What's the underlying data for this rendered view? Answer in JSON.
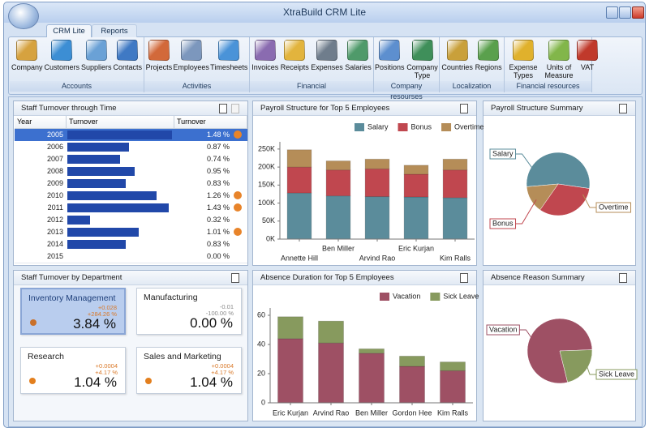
{
  "window": {
    "title": "XtraBuild CRM Lite"
  },
  "ribbon": {
    "tabs": [
      "CRM Lite",
      "Reports"
    ],
    "groups": [
      {
        "label": "Accounts",
        "items": [
          "Company",
          "Customers",
          "Suppliers",
          "Contacts"
        ]
      },
      {
        "label": "Activities",
        "items": [
          "Projects",
          "Employees",
          "Timesheets"
        ]
      },
      {
        "label": "Financial",
        "items": [
          "Invoices",
          "Receipts",
          "Expenses",
          "Salaries"
        ]
      },
      {
        "label": "Company resourses",
        "items": [
          "Positions",
          "Company Type"
        ]
      },
      {
        "label": "Localization",
        "items": [
          "Countries",
          "Regions"
        ]
      },
      {
        "label": "Financial resources",
        "items": [
          "Expense Types",
          "Units of Measure",
          "VAT"
        ]
      }
    ]
  },
  "turnover_table": {
    "title": "Staff Turnover through Time",
    "columns": [
      "Year",
      "Turnover",
      "Turnover"
    ],
    "rows": [
      {
        "year": "2005",
        "turnover": 1.48,
        "label": "1.48 %",
        "alert": true,
        "selected": true
      },
      {
        "year": "2006",
        "turnover": 0.87,
        "label": "0.87 %"
      },
      {
        "year": "2007",
        "turnover": 0.74,
        "label": "0.74 %"
      },
      {
        "year": "2008",
        "turnover": 0.95,
        "label": "0.95 %"
      },
      {
        "year": "2009",
        "turnover": 0.83,
        "label": "0.83 %"
      },
      {
        "year": "2010",
        "turnover": 1.26,
        "label": "1.26 %",
        "alert": true
      },
      {
        "year": "2011",
        "turnover": 1.43,
        "label": "1.43 %",
        "alert": true
      },
      {
        "year": "2012",
        "turnover": 0.32,
        "label": "0.32 %"
      },
      {
        "year": "2013",
        "turnover": 1.01,
        "label": "1.01 %",
        "alert": true
      },
      {
        "year": "2014",
        "turnover": 0.83,
        "label": "0.83 %"
      },
      {
        "year": "2015",
        "turnover": 0.0,
        "label": "0.00 %"
      }
    ]
  },
  "department": {
    "title": "Staff Turnover by Department",
    "cards": [
      {
        "name": "Inventory Management",
        "delta": "+0.028",
        "delta_percent": "+284.26 %",
        "value": "3.84 %",
        "indicator_color": "#c9702a",
        "selected": true
      },
      {
        "name": "Manufacturing",
        "delta": "-0.01",
        "delta_percent": "-100.00 %",
        "value": "0.00 %"
      },
      {
        "name": "Research",
        "delta": "+0.0004",
        "delta_percent": "+4.17 %",
        "value": "1.04 %",
        "indicator_color": "#e37f1e"
      },
      {
        "name": "Sales and Marketing",
        "delta": "+0.0004",
        "delta_percent": "+4.17 %",
        "value": "1.04 %",
        "indicator_color": "#e37f1e"
      }
    ]
  },
  "chart_data": [
    {
      "type": "bar",
      "title": "Payroll Structure for Top 5 Employees",
      "categories": [
        "Annette Hill",
        "Ben Miller",
        "Arvind Rao",
        "Eric Kurjan",
        "Kim Ralls"
      ],
      "series": [
        {
          "name": "Salary",
          "color": "#5b8c9b",
          "values": [
            128,
            120,
            118,
            117,
            115
          ]
        },
        {
          "name": "Bonus",
          "color": "#c0474f",
          "values": [
            72,
            72,
            77,
            63,
            77
          ]
        },
        {
          "name": "Overtime",
          "color": "#b58d58",
          "values": [
            48,
            25,
            27,
            25,
            30
          ]
        }
      ],
      "ylim": [
        0,
        270
      ],
      "yticks": [
        {
          "value": 0,
          "label": "0K"
        },
        {
          "value": 50,
          "label": "50K"
        },
        {
          "value": 100,
          "label": "100K"
        },
        {
          "value": 150,
          "label": "150K"
        },
        {
          "value": 200,
          "label": "200K"
        },
        {
          "value": 250,
          "label": "250K"
        }
      ]
    },
    {
      "type": "pie",
      "title": "Payroll Structure Summary",
      "categories": [
        "Salary",
        "Bonus",
        "Overtime"
      ],
      "values": [
        598,
        361,
        155
      ],
      "colors": [
        "#5b8c9b",
        "#c0474f",
        "#b58d58"
      ]
    },
    {
      "type": "bar",
      "title": "Absence Duration for Top 5 Employees",
      "categories": [
        "Eric Kurjan",
        "Arvind Rao",
        "Ben Miller",
        "Gordon Hee",
        "Kim Ralls"
      ],
      "series": [
        {
          "name": "Vacation",
          "color": "#9e5064",
          "values": [
            44,
            41,
            34,
            25,
            22
          ]
        },
        {
          "name": "Sick Leave",
          "color": "#879a5e",
          "values": [
            15,
            15,
            3,
            7,
            6
          ]
        }
      ],
      "ylim": [
        0,
        65
      ],
      "yticks": [
        0,
        20,
        40,
        60
      ]
    },
    {
      "type": "pie",
      "title": "Absence Reason Summary",
      "categories": [
        "Vacation",
        "Sick Leave"
      ],
      "values": [
        166,
        46
      ],
      "colors": [
        "#9e5064",
        "#879a5e"
      ]
    }
  ]
}
